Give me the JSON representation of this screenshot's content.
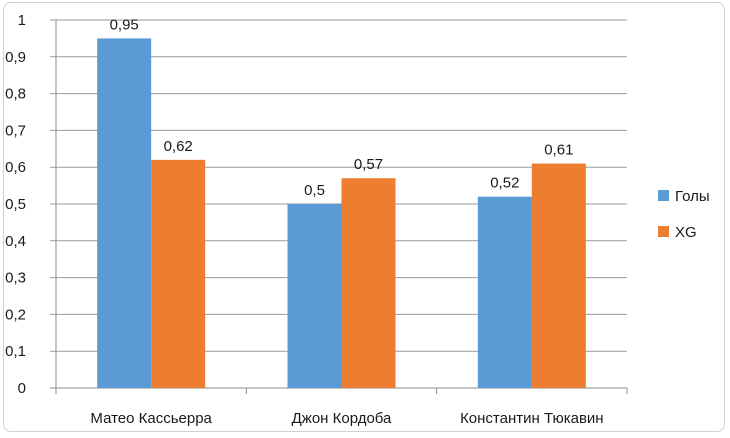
{
  "chart_data": {
    "type": "bar",
    "categories": [
      "Матео Кассьерра",
      "Джон Кордоба",
      "Константин Тюкавин"
    ],
    "series": [
      {
        "name": "Голы",
        "values": [
          0.95,
          0.5,
          0.52
        ],
        "labels": [
          "0,95",
          "0,5",
          "0,52"
        ],
        "color": "#5b9bd5"
      },
      {
        "name": "XG",
        "values": [
          0.62,
          0.57,
          0.61
        ],
        "labels": [
          "0,62",
          "0,57",
          "0,61"
        ],
        "color": "#ed7d31"
      }
    ],
    "ylim": [
      0,
      1
    ],
    "yticks": [
      0,
      0.1,
      0.2,
      0.3,
      0.4,
      0.5,
      0.6,
      0.7,
      0.8,
      0.9,
      1
    ],
    "ytick_labels": [
      "0",
      "0,1",
      "0,2",
      "0,3",
      "0,4",
      "0,5",
      "0,6",
      "0,7",
      "0,8",
      "0,9",
      "1"
    ],
    "grid": true,
    "legend_position": "right",
    "title": "",
    "xlabel": "",
    "ylabel": ""
  }
}
